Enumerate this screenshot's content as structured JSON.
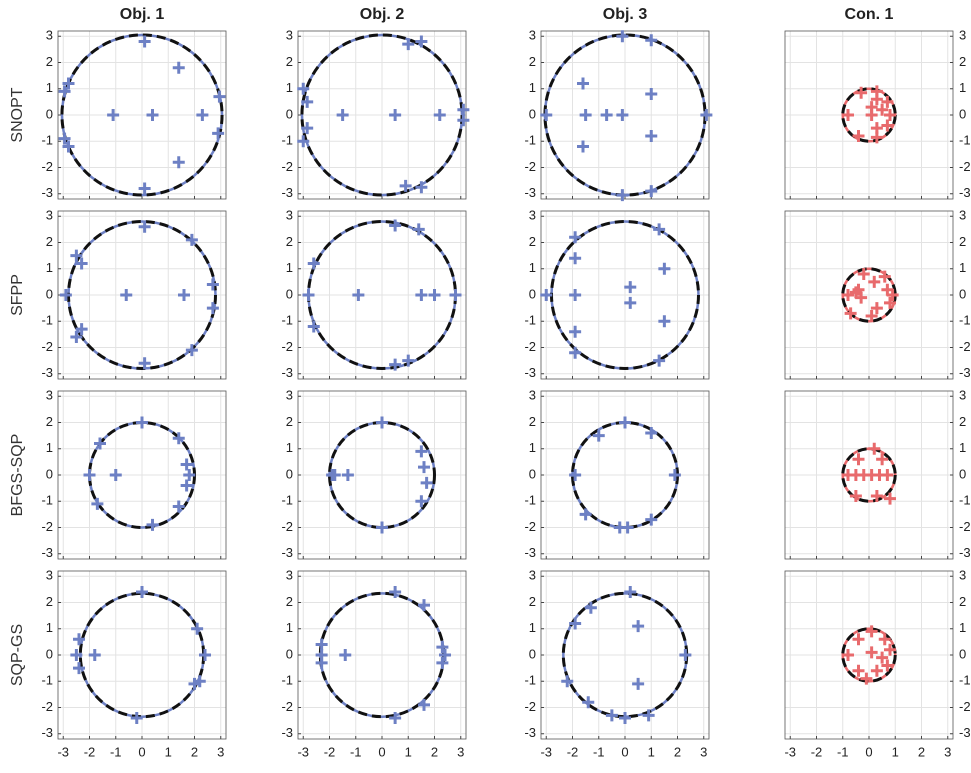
{
  "chart_data": [
    {
      "type": "scatter",
      "title": "Obj. 1",
      "ylabel": "SNOPT",
      "color": "#6d80c4",
      "radius": 3.05,
      "xlim": [
        -3.2,
        3.2
      ],
      "ylim": [
        -3.2,
        3.2
      ],
      "xticks": [
        -3,
        -2,
        -1,
        0,
        1,
        2,
        3
      ],
      "yticks": [
        -3,
        -2,
        -1,
        0,
        1,
        2,
        3
      ],
      "grid": true,
      "x": [
        0.1,
        1.4,
        -2.8,
        -2.95,
        -1.1,
        0.4,
        2.3,
        2.95,
        2.9,
        -2.95,
        -2.8,
        1.4,
        0.1
      ],
      "y": [
        2.8,
        1.8,
        1.2,
        0.9,
        0,
        0,
        0,
        0.7,
        -0.7,
        -0.9,
        -1.2,
        -1.8,
        -2.8
      ]
    },
    {
      "type": "scatter",
      "title": "Obj. 2",
      "color": "#6d80c4",
      "radius": 3.05,
      "xlim": [
        -3.2,
        3.2
      ],
      "ylim": [
        -3.2,
        3.2
      ],
      "xticks": [
        -3,
        -2,
        -1,
        0,
        1,
        2,
        3
      ],
      "yticks": [
        -3,
        -2,
        -1,
        0,
        1,
        2,
        3
      ],
      "grid": true,
      "x": [
        1.0,
        1.5,
        -3.0,
        -2.85,
        -2.85,
        -3.0,
        0.9,
        1.5,
        -1.5,
        0.5,
        2.2,
        3.1,
        3.1
      ],
      "y": [
        2.7,
        2.8,
        1.0,
        0.5,
        -0.5,
        -1.0,
        -2.7,
        -2.75,
        0,
        0,
        0,
        0.2,
        -0.2
      ]
    },
    {
      "type": "scatter",
      "title": "Obj. 3",
      "color": "#6d80c4",
      "radius": 3.05,
      "xlim": [
        -3.2,
        3.2
      ],
      "ylim": [
        -3.2,
        3.2
      ],
      "xticks": [
        -3,
        -2,
        -1,
        0,
        1,
        2,
        3
      ],
      "yticks": [
        -3,
        -2,
        -1,
        0,
        1,
        2,
        3
      ],
      "grid": true,
      "x": [
        -0.1,
        1.0,
        -1.6,
        -1.5,
        -0.7,
        -0.1,
        1.0,
        1.0,
        -1.6,
        -3.0,
        3.1,
        -0.1,
        1.0
      ],
      "y": [
        3.0,
        2.85,
        1.2,
        0,
        0,
        0,
        0.8,
        -0.8,
        -1.2,
        0,
        0,
        -3.05,
        -2.9
      ]
    },
    {
      "type": "scatter",
      "title": "Con. 1",
      "yaxis_location": "right",
      "color": "#e86a6c",
      "radius": 1,
      "xlim": [
        -3.2,
        3.2
      ],
      "ylim": [
        -3.2,
        3.2
      ],
      "xticks": [
        -3,
        -2,
        -1,
        0,
        1,
        2,
        3
      ],
      "yticks": [
        -3,
        -2,
        -1,
        0,
        1,
        2,
        3
      ],
      "grid": true,
      "x": [
        -0.3,
        0.3,
        0.3,
        0.7,
        -0.8,
        0.1,
        0.8,
        0.7,
        0.3,
        0.3,
        -0.4,
        0.1,
        0.5
      ],
      "y": [
        0.85,
        0.9,
        0.6,
        0.5,
        0,
        0,
        0,
        -0.4,
        -0.5,
        -0.85,
        -0.8,
        0.3,
        0.2
      ]
    },
    {
      "type": "scatter",
      "ylabel": "SFPP",
      "color": "#6d80c4",
      "radius": 2.8,
      "xlim": [
        -3.2,
        3.2
      ],
      "ylim": [
        -3.2,
        3.2
      ],
      "xticks": [
        -3,
        -2,
        -1,
        0,
        1,
        2,
        3
      ],
      "yticks": [
        -3,
        -2,
        -1,
        0,
        1,
        2,
        3
      ],
      "grid": true,
      "x": [
        0.1,
        1.9,
        -2.5,
        -2.3,
        -2.9,
        -0.6,
        1.6,
        2.7,
        2.7,
        -2.3,
        -2.5,
        1.9,
        0.1
      ],
      "y": [
        2.6,
        2.1,
        1.5,
        1.2,
        0,
        0,
        0,
        0.4,
        -0.5,
        -1.3,
        -1.6,
        -2.1,
        -2.6
      ]
    },
    {
      "type": "scatter",
      "color": "#6d80c4",
      "radius": 2.8,
      "xlim": [
        -3.2,
        3.2
      ],
      "ylim": [
        -3.2,
        3.2
      ],
      "xticks": [
        -3,
        -2,
        -1,
        0,
        1,
        2,
        3
      ],
      "yticks": [
        -3,
        -2,
        -1,
        0,
        1,
        2,
        3
      ],
      "grid": true,
      "x": [
        0.5,
        1.4,
        -2.6,
        -2.8,
        -0.9,
        1.5,
        2.0,
        2.8,
        -2.6,
        0.5,
        1.0
      ],
      "y": [
        2.65,
        2.5,
        1.2,
        0,
        0,
        0,
        0,
        0,
        -1.2,
        -2.65,
        -2.5
      ]
    },
    {
      "type": "scatter",
      "color": "#6d80c4",
      "radius": 2.8,
      "xlim": [
        -3.2,
        3.2
      ],
      "ylim": [
        -3.2,
        3.2
      ],
      "xticks": [
        -3,
        -2,
        -1,
        0,
        1,
        2,
        3
      ],
      "yticks": [
        -3,
        -2,
        -1,
        0,
        1,
        2,
        3
      ],
      "grid": true,
      "x": [
        -1.9,
        -1.9,
        1.3,
        1.5,
        -3.0,
        -1.9,
        0.2,
        0.2,
        1.5,
        -1.9,
        -1.9,
        1.3
      ],
      "y": [
        2.2,
        1.4,
        2.5,
        1.0,
        0,
        0,
        0.3,
        -0.3,
        -1.0,
        -1.4,
        -2.2,
        -2.5
      ]
    },
    {
      "type": "scatter",
      "yaxis_location": "right",
      "color": "#e86a6c",
      "radius": 1,
      "xlim": [
        -3.2,
        3.2
      ],
      "ylim": [
        -3.2,
        3.2
      ],
      "xticks": [
        -3,
        -2,
        -1,
        0,
        1,
        2,
        3
      ],
      "yticks": [
        -3,
        -2,
        -1,
        0,
        1,
        2,
        3
      ],
      "grid": true,
      "x": [
        -0.2,
        0.2,
        0.6,
        0.7,
        0.9,
        0.8,
        0.3,
        0.1,
        -0.7,
        -0.8,
        -0.5,
        -0.3,
        -0.4
      ],
      "y": [
        0.8,
        0.5,
        0.7,
        0.2,
        0,
        -0.3,
        -0.5,
        -0.8,
        -0.7,
        0,
        0.1,
        -0.1,
        0.2
      ]
    },
    {
      "type": "scatter",
      "ylabel": "BFGS-SQP",
      "color": "#6d80c4",
      "radius": 2.0,
      "xlim": [
        -3.2,
        3.2
      ],
      "ylim": [
        -3.2,
        3.2
      ],
      "xticks": [
        -3,
        -2,
        -1,
        0,
        1,
        2,
        3
      ],
      "yticks": [
        -3,
        -2,
        -1,
        0,
        1,
        2,
        3
      ],
      "grid": true,
      "x": [
        0.0,
        -1.6,
        1.4,
        1.7,
        1.7,
        1.4,
        -2.0,
        -1.0,
        -1.7,
        0.4,
        1.8
      ],
      "y": [
        2.0,
        1.2,
        1.4,
        0.4,
        -0.4,
        -1.2,
        0,
        0,
        -1.1,
        -1.9,
        0
      ]
    },
    {
      "type": "scatter",
      "color": "#6d80c4",
      "radius": 2.0,
      "xlim": [
        -3.2,
        3.2
      ],
      "ylim": [
        -3.2,
        3.2
      ],
      "xticks": [
        -3,
        -2,
        -1,
        0,
        1,
        2,
        3
      ],
      "yticks": [
        -3,
        -2,
        -1,
        0,
        1,
        2,
        3
      ],
      "grid": true,
      "x": [
        0.0,
        1.5,
        1.6,
        1.7,
        1.5,
        -1.9,
        -1.3,
        0.0,
        -1.8
      ],
      "y": [
        2.0,
        0.9,
        0.3,
        -0.3,
        -1.0,
        0,
        0,
        -2.0,
        0
      ]
    },
    {
      "type": "scatter",
      "color": "#6d80c4",
      "radius": 2.0,
      "xlim": [
        -3.2,
        3.2
      ],
      "ylim": [
        -3.2,
        3.2
      ],
      "xticks": [
        -3,
        -2,
        -1,
        0,
        1,
        2,
        3
      ],
      "yticks": [
        -3,
        -2,
        -1,
        0,
        1,
        2,
        3
      ],
      "grid": true,
      "x": [
        0.0,
        -1.0,
        1.0,
        -1.9,
        1.9,
        -1.5,
        1.0,
        -0.2,
        0.1
      ],
      "y": [
        2.0,
        1.5,
        1.6,
        0,
        0,
        -1.5,
        -1.7,
        -2.0,
        -2.0
      ]
    },
    {
      "type": "scatter",
      "yaxis_location": "right",
      "color": "#e86a6c",
      "radius": 1,
      "xlim": [
        -3.2,
        3.2
      ],
      "ylim": [
        -3.2,
        3.2
      ],
      "xticks": [
        -3,
        -2,
        -1,
        0,
        1,
        2,
        3
      ],
      "yticks": [
        -3,
        -2,
        -1,
        0,
        1,
        2,
        3
      ],
      "grid": true,
      "x": [
        0.2,
        0.5,
        -0.4,
        -0.8,
        -0.5,
        -0.2,
        0.1,
        0.4,
        0.7,
        -0.5,
        0.3,
        0.8
      ],
      "y": [
        1.0,
        0.6,
        0.6,
        0,
        0,
        0,
        0,
        0,
        0,
        -0.8,
        -0.8,
        -0.9
      ]
    },
    {
      "type": "scatter",
      "ylabel": "SQP-GS",
      "color": "#6d80c4",
      "radius": 2.35,
      "xlim": [
        -3.2,
        3.2
      ],
      "ylim": [
        -3.2,
        3.2
      ],
      "xticks": [
        -3,
        -2,
        -1,
        0,
        1,
        2,
        3
      ],
      "yticks": [
        -3,
        -2,
        -1,
        0,
        1,
        2,
        3
      ],
      "grid": true,
      "x": [
        0.0,
        2.1,
        2.2,
        2.4,
        -2.4,
        -2.4,
        -1.8,
        -0.2,
        -2.5,
        2.0
      ],
      "y": [
        2.4,
        1.0,
        -1.0,
        0,
        0.6,
        -0.5,
        0,
        -2.4,
        0,
        -1.1
      ]
    },
    {
      "type": "scatter",
      "color": "#6d80c4",
      "radius": 2.35,
      "xlim": [
        -3.2,
        3.2
      ],
      "ylim": [
        -3.2,
        3.2
      ],
      "xticks": [
        -3,
        -2,
        -1,
        0,
        1,
        2,
        3
      ],
      "yticks": [
        -3,
        -2,
        -1,
        0,
        1,
        2,
        3
      ],
      "grid": true,
      "x": [
        0.5,
        1.6,
        -2.3,
        -2.3,
        -2.3,
        -1.4,
        2.3,
        2.4,
        2.3,
        1.6,
        0.5
      ],
      "y": [
        2.4,
        1.9,
        0.4,
        0,
        -0.3,
        0,
        0.3,
        0,
        -0.3,
        -1.9,
        -2.4
      ]
    },
    {
      "type": "scatter",
      "color": "#6d80c4",
      "radius": 2.35,
      "xlim": [
        -3.2,
        3.2
      ],
      "ylim": [
        -3.2,
        3.2
      ],
      "xticks": [
        -3,
        -2,
        -1,
        0,
        1,
        2,
        3
      ],
      "yticks": [
        -3,
        -2,
        -1,
        0,
        1,
        2,
        3
      ],
      "grid": true,
      "x": [
        0.2,
        -1.3,
        -1.9,
        0.5,
        0.5,
        -2.2,
        -1.4,
        0.0,
        0.9,
        -0.5,
        2.3
      ],
      "y": [
        2.4,
        1.8,
        1.2,
        1.1,
        -1.1,
        -1.0,
        -1.8,
        -2.4,
        -2.3,
        -2.3,
        0
      ]
    },
    {
      "type": "scatter",
      "yaxis_location": "right",
      "color": "#e86a6c",
      "radius": 1,
      "xlim": [
        -3.2,
        3.2
      ],
      "ylim": [
        -3.2,
        3.2
      ],
      "xticks": [
        -3,
        -2,
        -1,
        0,
        1,
        2,
        3
      ],
      "yticks": [
        -3,
        -2,
        -1,
        0,
        1,
        2,
        3
      ],
      "grid": true,
      "x": [
        0.1,
        0.6,
        -0.4,
        0.8,
        -0.8,
        0.1,
        0.5,
        0.7,
        0.3,
        -0.4,
        -0.1
      ],
      "y": [
        0.9,
        0.6,
        0.6,
        0.2,
        0,
        0.1,
        -0.1,
        -0.4,
        -0.6,
        -0.6,
        -0.9
      ]
    }
  ]
}
